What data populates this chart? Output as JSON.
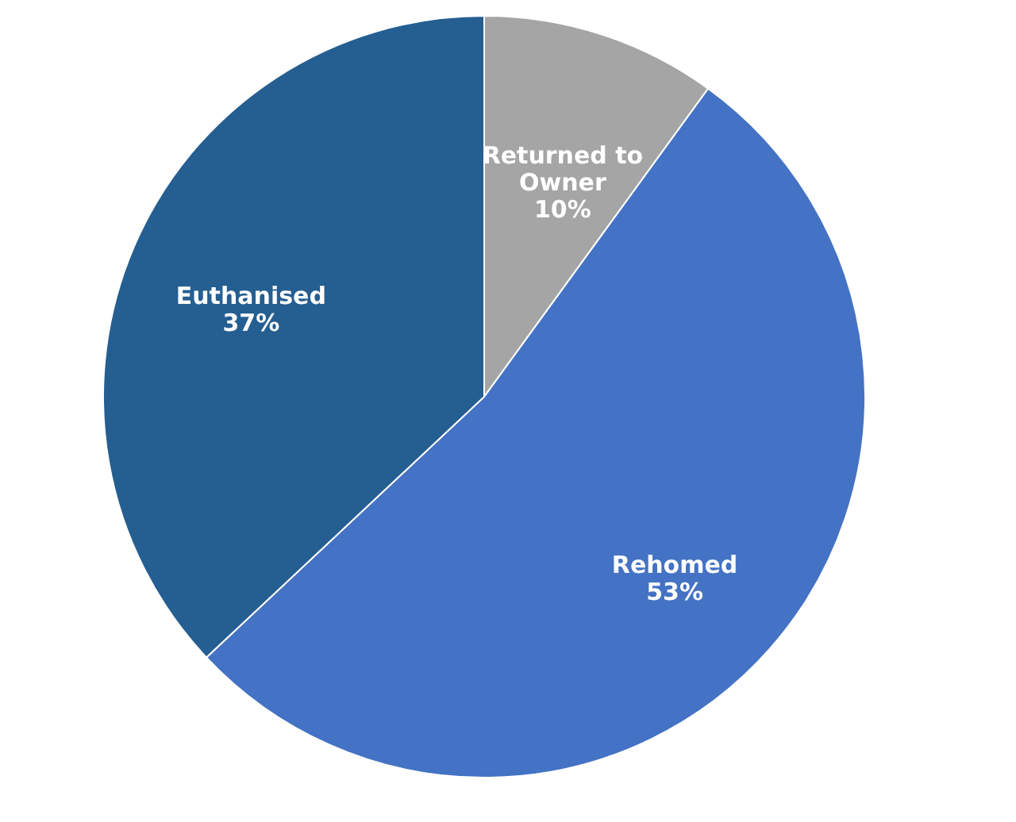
{
  "chart_data": {
    "type": "pie",
    "categories": [
      "Returned to Owner",
      "Rehomed",
      "Euthanised"
    ],
    "values": [
      10,
      53,
      37
    ],
    "colors": [
      "#a5a5a5",
      "#4472c4",
      "#255e91"
    ],
    "value_labels": [
      "10%",
      "53%",
      "37%"
    ],
    "legend": false
  }
}
